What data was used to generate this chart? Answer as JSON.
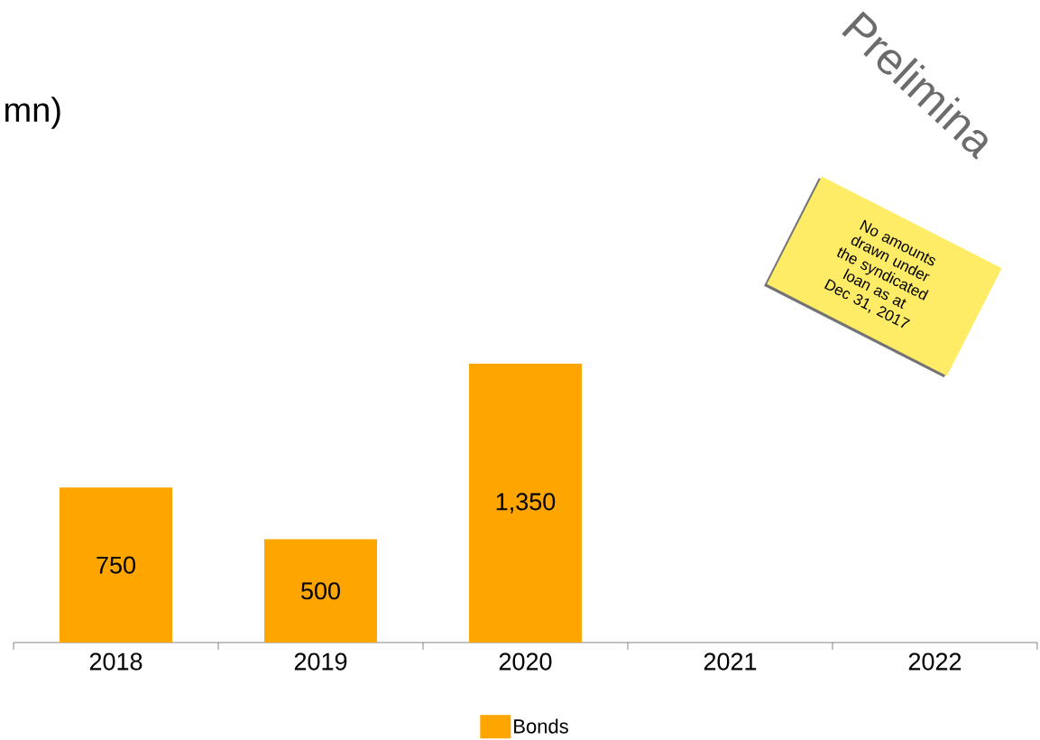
{
  "chart_data": {
    "type": "bar",
    "title": "mn)",
    "categories": [
      "2018",
      "2019",
      "2020",
      "2021",
      "2022"
    ],
    "series": [
      {
        "name": "Bonds",
        "color": "#ffa500",
        "values": [
          750,
          500,
          1350,
          null,
          null
        ],
        "value_labels": [
          "750",
          "500",
          "1,350",
          null,
          null
        ]
      }
    ],
    "legend": "bottom",
    "annotations": [
      "Prelimina",
      "No amounts drawn under the syndicated loan as at Dec 31, 2017"
    ]
  }
}
